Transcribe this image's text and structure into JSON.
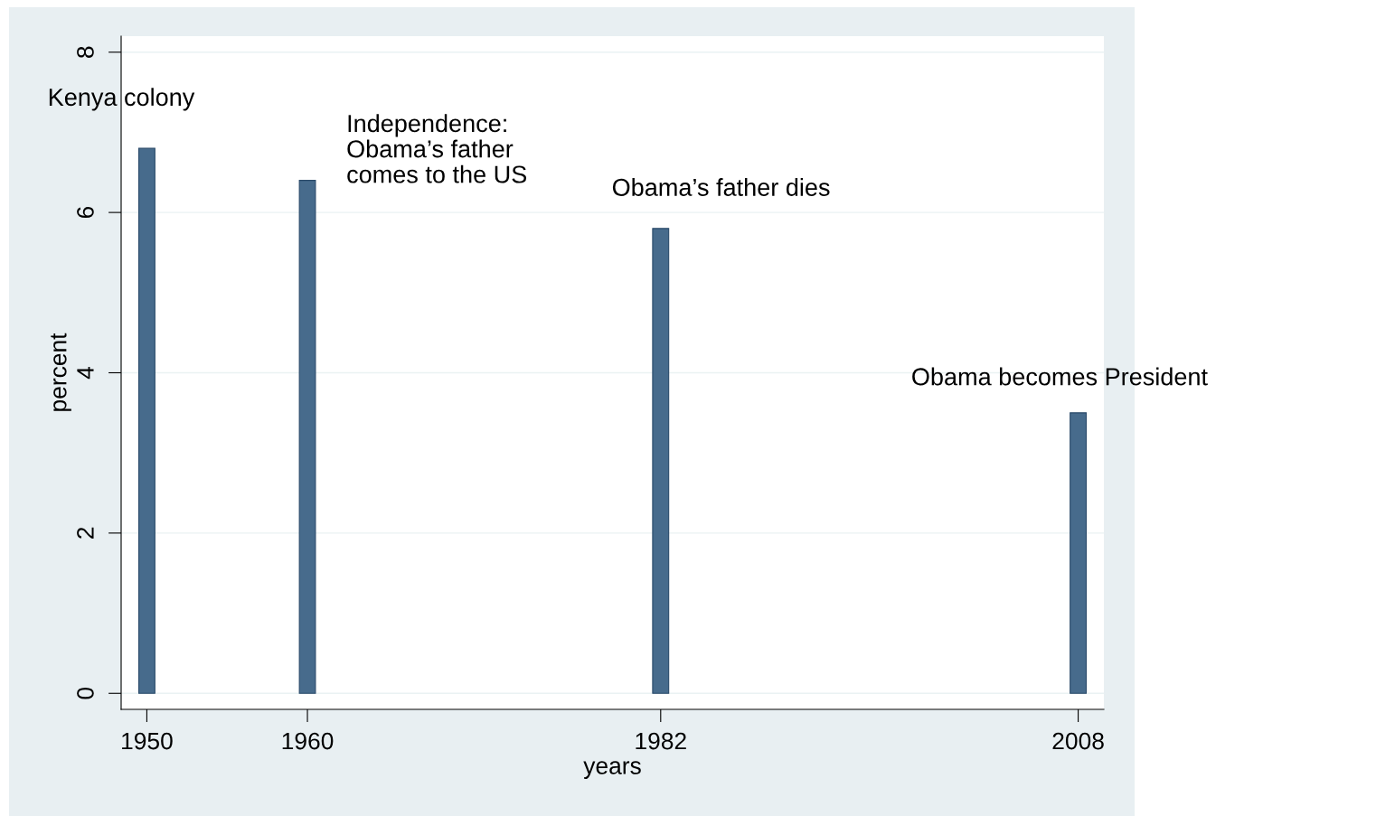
{
  "chart_data": {
    "type": "bar",
    "xlabel": "years",
    "ylabel": "percent",
    "x": [
      1950,
      1960,
      1982,
      2008
    ],
    "values": [
      6.8,
      6.4,
      5.8,
      3.5
    ],
    "color": "#476b8c",
    "xlim": [
      1948.4,
      2009.6
    ],
    "xticks": [
      1950,
      1960,
      1982,
      2008
    ],
    "ylim": [
      -0.2,
      8.2
    ],
    "yticks": [
      0,
      2,
      4,
      6,
      8
    ],
    "grid": "y",
    "annotations": [
      {
        "text": "Kenya colony",
        "x": 1950,
        "y": 6.8
      },
      {
        "text": "Independence:\nObama’s father\ncomes to the US",
        "x": 1960,
        "y": 6.4
      },
      {
        "text": "Obama’s father dies",
        "x": 1982,
        "y": 5.8
      },
      {
        "text": "Obama becomes President",
        "x": 2008,
        "y": 3.5
      }
    ]
  }
}
